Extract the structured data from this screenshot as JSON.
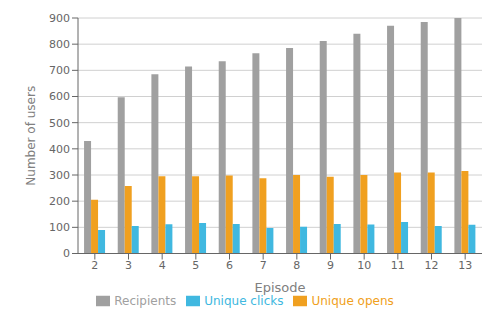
{
  "chart_data": {
    "type": "bar",
    "xlabel": "Episode",
    "ylabel": "Number of users",
    "categories": [
      "2",
      "3",
      "4",
      "5",
      "6",
      "7",
      "8",
      "9",
      "10",
      "11",
      "12",
      "13"
    ],
    "series": [
      {
        "name": "Recipients",
        "color": "#a0a0a0",
        "values": [
          430,
          597,
          685,
          715,
          735,
          765,
          785,
          812,
          840,
          870,
          885,
          900
        ]
      },
      {
        "name": "Unique opens",
        "color": "#f0a020",
        "values": [
          205,
          258,
          295,
          295,
          298,
          288,
          300,
          293,
          300,
          310,
          310,
          315
        ]
      },
      {
        "name": "Unique clicks",
        "color": "#40b8e0",
        "values": [
          90,
          105,
          112,
          117,
          113,
          97,
          102,
          113,
          111,
          120,
          105,
          110
        ]
      }
    ],
    "ylim": [
      0,
      900
    ],
    "yticks": [
      0,
      100,
      200,
      300,
      400,
      500,
      600,
      700,
      800,
      900
    ],
    "grid": true,
    "legend": "bottom"
  }
}
